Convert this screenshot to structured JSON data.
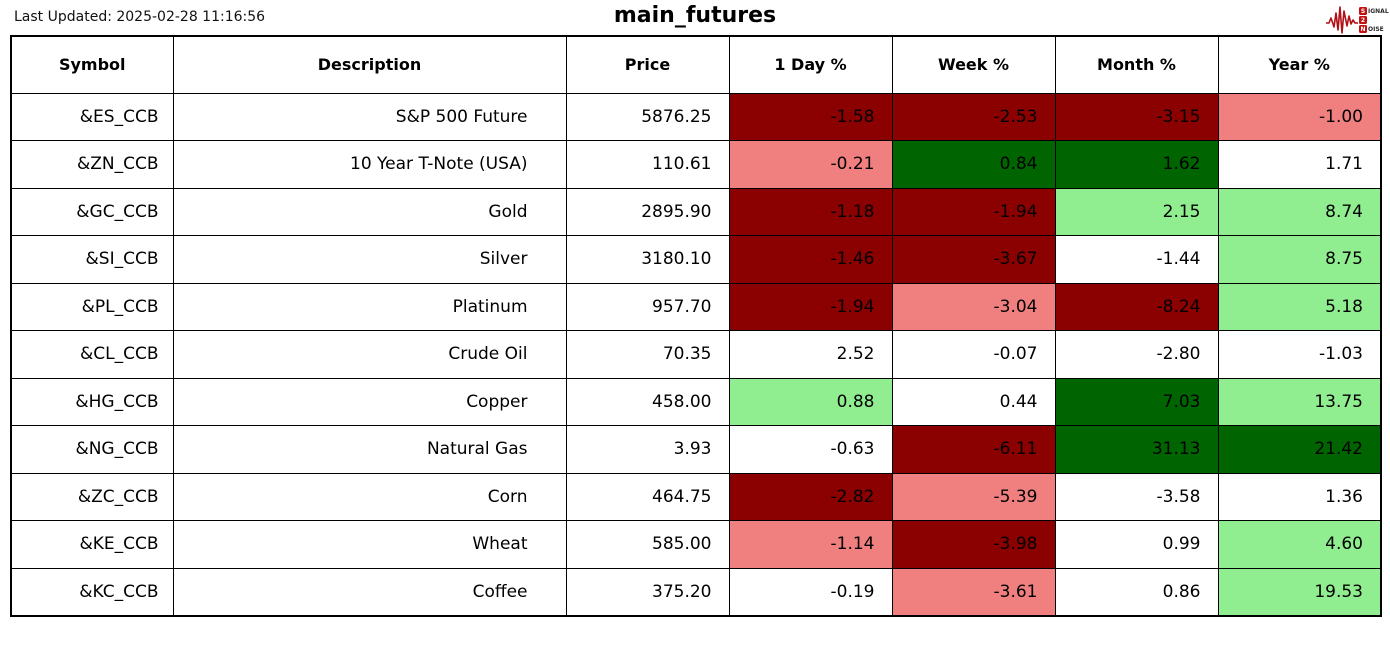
{
  "header": {
    "last_updated": "Last Updated: 2025-02-28 11:16:56",
    "logo": {
      "signal_initial": "S",
      "signal_rest": "IGNAL",
      "two": "2",
      "noise_initial": "N",
      "noise_rest": "OISE",
      "waveform_color": "#b01116",
      "box_color": "#c41114"
    }
  },
  "chart_data": {
    "type": "table",
    "title": "main_futures",
    "columns": [
      "Symbol",
      "Description",
      "Price",
      "1 Day %",
      "Week %",
      "Month %",
      "Year %"
    ],
    "color_coding": {
      "strong_negative": "#8B0000",
      "mild_negative": "#F08080",
      "neutral": "#FFFFFF",
      "mild_positive": "#90EE90",
      "strong_positive": "#006400"
    },
    "rows": [
      {
        "symbol": "&ES_CCB",
        "description": "S&P 500 Future",
        "price": 5876.25,
        "day": -1.58,
        "week": -2.53,
        "month": -3.15,
        "year": -1.0,
        "cell_tones": {
          "day": "strong_negative",
          "week": "strong_negative",
          "month": "strong_negative",
          "year": "mild_negative"
        }
      },
      {
        "symbol": "&ZN_CCB",
        "description": "10 Year T-Note (USA)",
        "price": 110.61,
        "day": -0.21,
        "week": 0.84,
        "month": 1.62,
        "year": 1.71,
        "cell_tones": {
          "day": "mild_negative",
          "week": "strong_positive",
          "month": "strong_positive",
          "year": "neutral"
        }
      },
      {
        "symbol": "&GC_CCB",
        "description": "Gold",
        "price": 2895.9,
        "day": -1.18,
        "week": -1.94,
        "month": 2.15,
        "year": 8.74,
        "cell_tones": {
          "day": "strong_negative",
          "week": "strong_negative",
          "month": "mild_positive",
          "year": "mild_positive"
        }
      },
      {
        "symbol": "&SI_CCB",
        "description": "Silver",
        "price": 3180.1,
        "day": -1.46,
        "week": -3.67,
        "month": -1.44,
        "year": 8.75,
        "cell_tones": {
          "day": "strong_negative",
          "week": "strong_negative",
          "month": "neutral",
          "year": "mild_positive"
        }
      },
      {
        "symbol": "&PL_CCB",
        "description": "Platinum",
        "price": 957.7,
        "day": -1.94,
        "week": -3.04,
        "month": -8.24,
        "year": 5.18,
        "cell_tones": {
          "day": "strong_negative",
          "week": "mild_negative",
          "month": "strong_negative",
          "year": "mild_positive"
        }
      },
      {
        "symbol": "&CL_CCB",
        "description": "Crude Oil",
        "price": 70.35,
        "day": 2.52,
        "week": -0.07,
        "month": -2.8,
        "year": -1.03,
        "cell_tones": {
          "day": "neutral",
          "week": "neutral",
          "month": "neutral",
          "year": "neutral"
        }
      },
      {
        "symbol": "&HG_CCB",
        "description": "Copper",
        "price": 458.0,
        "day": 0.88,
        "week": 0.44,
        "month": 7.03,
        "year": 13.75,
        "cell_tones": {
          "day": "mild_positive",
          "week": "neutral",
          "month": "strong_positive",
          "year": "mild_positive"
        }
      },
      {
        "symbol": "&NG_CCB",
        "description": "Natural Gas",
        "price": 3.93,
        "day": -0.63,
        "week": -6.11,
        "month": 31.13,
        "year": 21.42,
        "cell_tones": {
          "day": "neutral",
          "week": "strong_negative",
          "month": "strong_positive",
          "year": "strong_positive"
        }
      },
      {
        "symbol": "&ZC_CCB",
        "description": "Corn",
        "price": 464.75,
        "day": -2.82,
        "week": -5.39,
        "month": -3.58,
        "year": 1.36,
        "cell_tones": {
          "day": "strong_negative",
          "week": "mild_negative",
          "month": "neutral",
          "year": "neutral"
        }
      },
      {
        "symbol": "&KE_CCB",
        "description": "Wheat",
        "price": 585.0,
        "day": -1.14,
        "week": -3.98,
        "month": 0.99,
        "year": 4.6,
        "cell_tones": {
          "day": "mild_negative",
          "week": "strong_negative",
          "month": "neutral",
          "year": "mild_positive"
        }
      },
      {
        "symbol": "&KC_CCB",
        "description": "Coffee",
        "price": 375.2,
        "day": -0.19,
        "week": -3.61,
        "month": 0.86,
        "year": 19.53,
        "cell_tones": {
          "day": "neutral",
          "week": "mild_negative",
          "month": "neutral",
          "year": "mild_positive"
        }
      }
    ]
  }
}
